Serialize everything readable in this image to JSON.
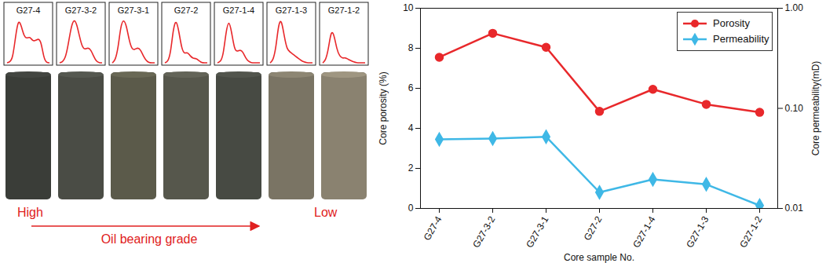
{
  "chart_data": {
    "type": "line",
    "categories": [
      "G27-4",
      "G27-3-2",
      "G27-3-1",
      "G27-2",
      "G27-1-4",
      "G27-1-3",
      "G27-1-2"
    ],
    "x_label": "Core sample No.",
    "y_label": "Core porosity (%)",
    "y2_label": "Core permeability(mD)",
    "ylim": [
      0,
      10
    ],
    "yticks": [
      0,
      2,
      4,
      6,
      8,
      10
    ],
    "y2lim": [
      0.01,
      1
    ],
    "y2ticks": [
      0.01,
      {
        "value": 0.1,
        "label": "0.10"
      },
      {
        "value": 1,
        "label": "1.00"
      }
    ],
    "grid": false,
    "legend": "upper right",
    "series": [
      {
        "name": "Porosity",
        "color": "#e8282b",
        "marker": "circle",
        "line_style": "solid",
        "values": [
          7.55,
          8.75,
          8.05,
          4.85,
          5.95,
          5.2,
          4.8
        ]
      },
      {
        "name": "Permeability",
        "color": "#3fb8e6",
        "marker": "diamond",
        "line_style": "solid",
        "axis": "y2",
        "log": true,
        "values": [
          0.049,
          0.05,
          0.052,
          0.0145,
          0.0195,
          0.0174,
          0.0107
        ]
      }
    ]
  },
  "core_panel": {
    "curves": [
      [
        0,
        0.02,
        0.1,
        0.6,
        1,
        0.85,
        0.6,
        0.55,
        0.6,
        0.5,
        0.5,
        0.55,
        0.5,
        0.1,
        0,
        0
      ],
      [
        0,
        0.02,
        0.1,
        0.4,
        0.8,
        1,
        0.9,
        0.6,
        0.35,
        0.3,
        0.35,
        0.3,
        0.15,
        0.03,
        0,
        0
      ],
      [
        0,
        0.05,
        0.3,
        0.85,
        1,
        0.85,
        0.5,
        0.3,
        0.3,
        0.35,
        0.3,
        0.15,
        0.05,
        0,
        0,
        0
      ],
      [
        0,
        0.02,
        0.2,
        0.8,
        1,
        0.7,
        0.3,
        0.2,
        0.25,
        0.15,
        0.1,
        0.1,
        0.05,
        0,
        0,
        0
      ],
      [
        0,
        0.02,
        0.15,
        0.7,
        1,
        0.7,
        0.3,
        0.25,
        0.3,
        0.25,
        0.1,
        0.03,
        0,
        0,
        0,
        0
      ],
      [
        0,
        0.05,
        0.3,
        0.9,
        1,
        0.6,
        0.3,
        0.25,
        0.2,
        0.15,
        0.1,
        0.05,
        0.02,
        0,
        0,
        0
      ],
      [
        0,
        0.05,
        0.3,
        0.75,
        0.65,
        0.3,
        0.15,
        0.1,
        0.12,
        0.08,
        0.05,
        0.02,
        0,
        0,
        0,
        0
      ]
    ],
    "grade_high": "High",
    "grade_label": "Oil bearing grade",
    "grade_low": "Low"
  }
}
